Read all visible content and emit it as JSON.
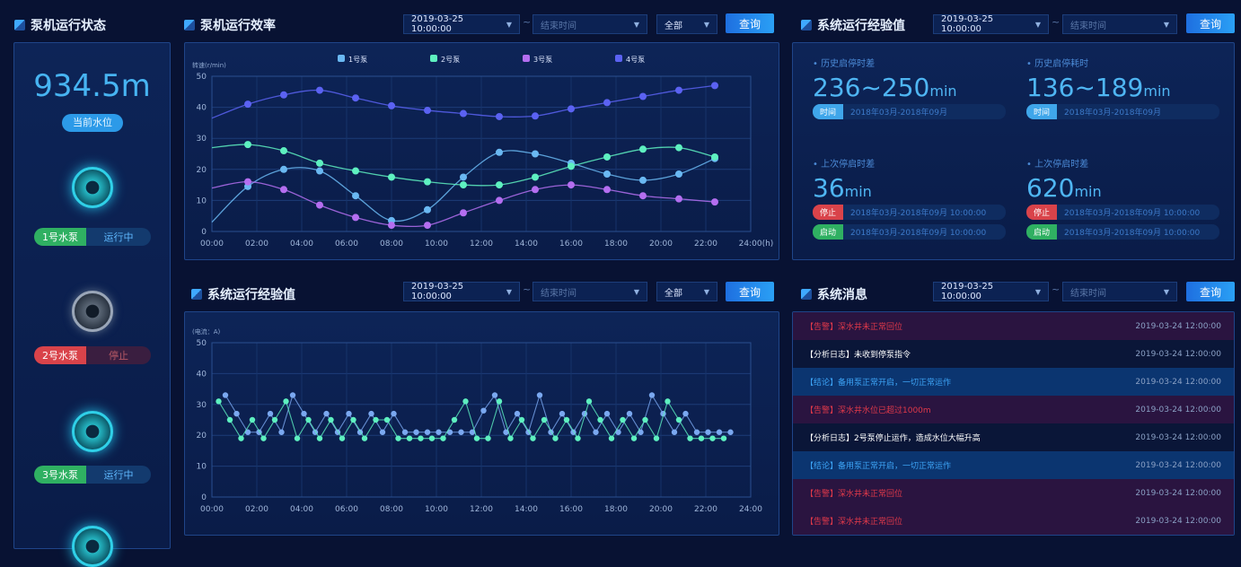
{
  "left": {
    "title": "泵机运行状态",
    "water_level": "934.5m",
    "water_label": "当前水位",
    "pumps": [
      {
        "name": "1号水泵",
        "status": "运行中",
        "state": "running"
      },
      {
        "name": "2号水泵",
        "status": "停止",
        "state": "stopped"
      },
      {
        "name": "3号水泵",
        "status": "运行中",
        "state": "running"
      },
      {
        "state": "running"
      }
    ]
  },
  "efficiency": {
    "title": "泵机运行效率",
    "start": "2019-03-25 10:00:00",
    "end_placeholder": "结束时间",
    "filter": "全部",
    "query": "查询",
    "sep": "~"
  },
  "experience_top": {
    "title": "系统运行经验值",
    "start": "2019-03-25 10:00:00",
    "end_placeholder": "结束时间",
    "query": "查询",
    "sep": "~",
    "stats": [
      {
        "label": "历史启停时差",
        "value": "236~250",
        "unit": "min",
        "tag": "时间",
        "range": "2018年03月-2018年09月"
      },
      {
        "label": "历史启停耗时",
        "value": "136~189",
        "unit": "min",
        "tag": "时间",
        "range": "2018年03月-2018年09月"
      },
      {
        "label": "上次停启时差",
        "value": "36",
        "unit": "min",
        "stop_tag": "停止",
        "stop_range": "2018年03月-2018年09月 10:00:00",
        "start_tag": "启动",
        "start_range": "2018年03月-2018年09月 10:00:00"
      },
      {
        "label": "上次停启时差",
        "value": "620",
        "unit": "min",
        "stop_tag": "停止",
        "stop_range": "2018年03月-2018年09月 10:00:00",
        "start_tag": "启动",
        "start_range": "2018年03月-2018年09月 10:00:00"
      }
    ]
  },
  "experience_bottom": {
    "title": "系统运行经验值",
    "start": "2019-03-25 10:00:00",
    "end_placeholder": "结束时间",
    "filter": "全部",
    "query": "查询",
    "sep": "~"
  },
  "messages": {
    "title": "系统消息",
    "start": "2019-03-25 10:00:00",
    "end_placeholder": "结束时间",
    "query": "查询",
    "sep": "~",
    "items": [
      {
        "type": "alarm",
        "text": "【告警】深水井未正常回位",
        "time": "2019-03-24 12:00:00"
      },
      {
        "type": "log",
        "text": "【分析日志】未收到停泵指令",
        "time": "2019-03-24 12:00:00"
      },
      {
        "type": "ok",
        "text": "【结论】备用泵正常开启，一切正常运作",
        "time": "2019-03-24 12:00:00"
      },
      {
        "type": "alarm",
        "text": "【告警】深水井水位已超过1000m",
        "time": "2019-03-24 12:00:00"
      },
      {
        "type": "log",
        "text": "【分析日志】2号泵停止运作，造成水位大幅升高",
        "time": "2019-03-24 12:00:00"
      },
      {
        "type": "ok",
        "text": "【结论】备用泵正常开启，一切正常运作",
        "time": "2019-03-24 12:00:00"
      },
      {
        "type": "alarm",
        "text": "【告警】深水井未正常回位",
        "time": "2019-03-24 12:00:00"
      },
      {
        "type": "alarm",
        "text": "【告警】深水井未正常回位",
        "time": "2019-03-24 12:00:00"
      }
    ]
  },
  "chart_data": [
    {
      "type": "line",
      "ylabel": "转速(r/min)",
      "ylim": [
        0,
        50
      ],
      "yticks": [
        0,
        10,
        20,
        30,
        40,
        50
      ],
      "xticks": [
        "00:00",
        "02:00",
        "04:00",
        "06:00",
        "08:00",
        "10:00",
        "12:00",
        "14:00",
        "16:00",
        "18:00",
        "20:00",
        "22:00",
        "24:00(h)"
      ],
      "xlim": [
        0,
        24
      ],
      "grid": true,
      "legend": "top",
      "smooth": true,
      "x": [
        0,
        1.6,
        3.2,
        4.8,
        6.4,
        8,
        9.6,
        11.2,
        12.8,
        14.4,
        16,
        17.6,
        19.2,
        20.8,
        22.4
      ],
      "series": [
        {
          "name": "1号泵",
          "color": "#6ab8f2",
          "values": [
            3,
            14.5,
            20,
            19.5,
            11.5,
            3.5,
            7,
            17.5,
            25.5,
            25,
            22,
            18.5,
            16.5,
            18.5,
            23.5
          ]
        },
        {
          "name": "2号泵",
          "color": "#5ef0c0",
          "values": [
            27,
            28,
            26,
            22,
            19.5,
            17.5,
            16,
            15,
            15,
            17.5,
            21,
            24,
            26.5,
            27,
            24
          ]
        },
        {
          "name": "3号泵",
          "color": "#b46ef0",
          "values": [
            14,
            16,
            13.5,
            8.5,
            4.5,
            2,
            2,
            6,
            10,
            13.5,
            15,
            13.5,
            11.5,
            10.5,
            9.5
          ]
        },
        {
          "name": "4号泵",
          "color": "#5b62f2",
          "values": [
            36.5,
            41,
            44,
            45.5,
            43,
            40.5,
            39,
            38,
            37,
            37.2,
            39.5,
            41.5,
            43.5,
            45.5,
            47
          ]
        }
      ]
    },
    {
      "type": "line",
      "ylabel": "(电流：A)",
      "ylim": [
        0,
        50
      ],
      "yticks": [
        0,
        10,
        20,
        30,
        40,
        50
      ],
      "xticks": [
        "00:00",
        "02:00",
        "04:00",
        "06:00",
        "08:00",
        "10:00",
        "12:00",
        "14:00",
        "16:00",
        "18:00",
        "20:00",
        "22:00",
        "24:00"
      ],
      "xlim": [
        0,
        24
      ],
      "grid": true,
      "series": [
        {
          "color": "#7aa8f0",
          "x_start": 0.6,
          "x_step": 0.5,
          "values": [
            33,
            27,
            21,
            21,
            27,
            21,
            33,
            27,
            21,
            27,
            21,
            27,
            21,
            27,
            21,
            27,
            21,
            21,
            21,
            21,
            21,
            21,
            21,
            28,
            33,
            21,
            27,
            21,
            33,
            21,
            27,
            21,
            27,
            21,
            27,
            21,
            27,
            21,
            33,
            27,
            21,
            27,
            21,
            21,
            21,
            21
          ]
        },
        {
          "color": "#5ef0c0",
          "x_start": 0.3,
          "x_step": 0.5,
          "values": [
            31,
            25,
            19,
            25,
            19,
            25,
            31,
            19,
            25,
            19,
            25,
            19,
            25,
            19,
            25,
            25,
            19,
            19,
            19,
            19,
            19,
            25,
            31,
            19,
            19,
            31,
            19,
            25,
            19,
            25,
            19,
            25,
            19,
            31,
            25,
            19,
            25,
            19,
            25,
            19,
            31,
            25,
            19,
            19,
            19,
            19
          ]
        }
      ]
    }
  ]
}
